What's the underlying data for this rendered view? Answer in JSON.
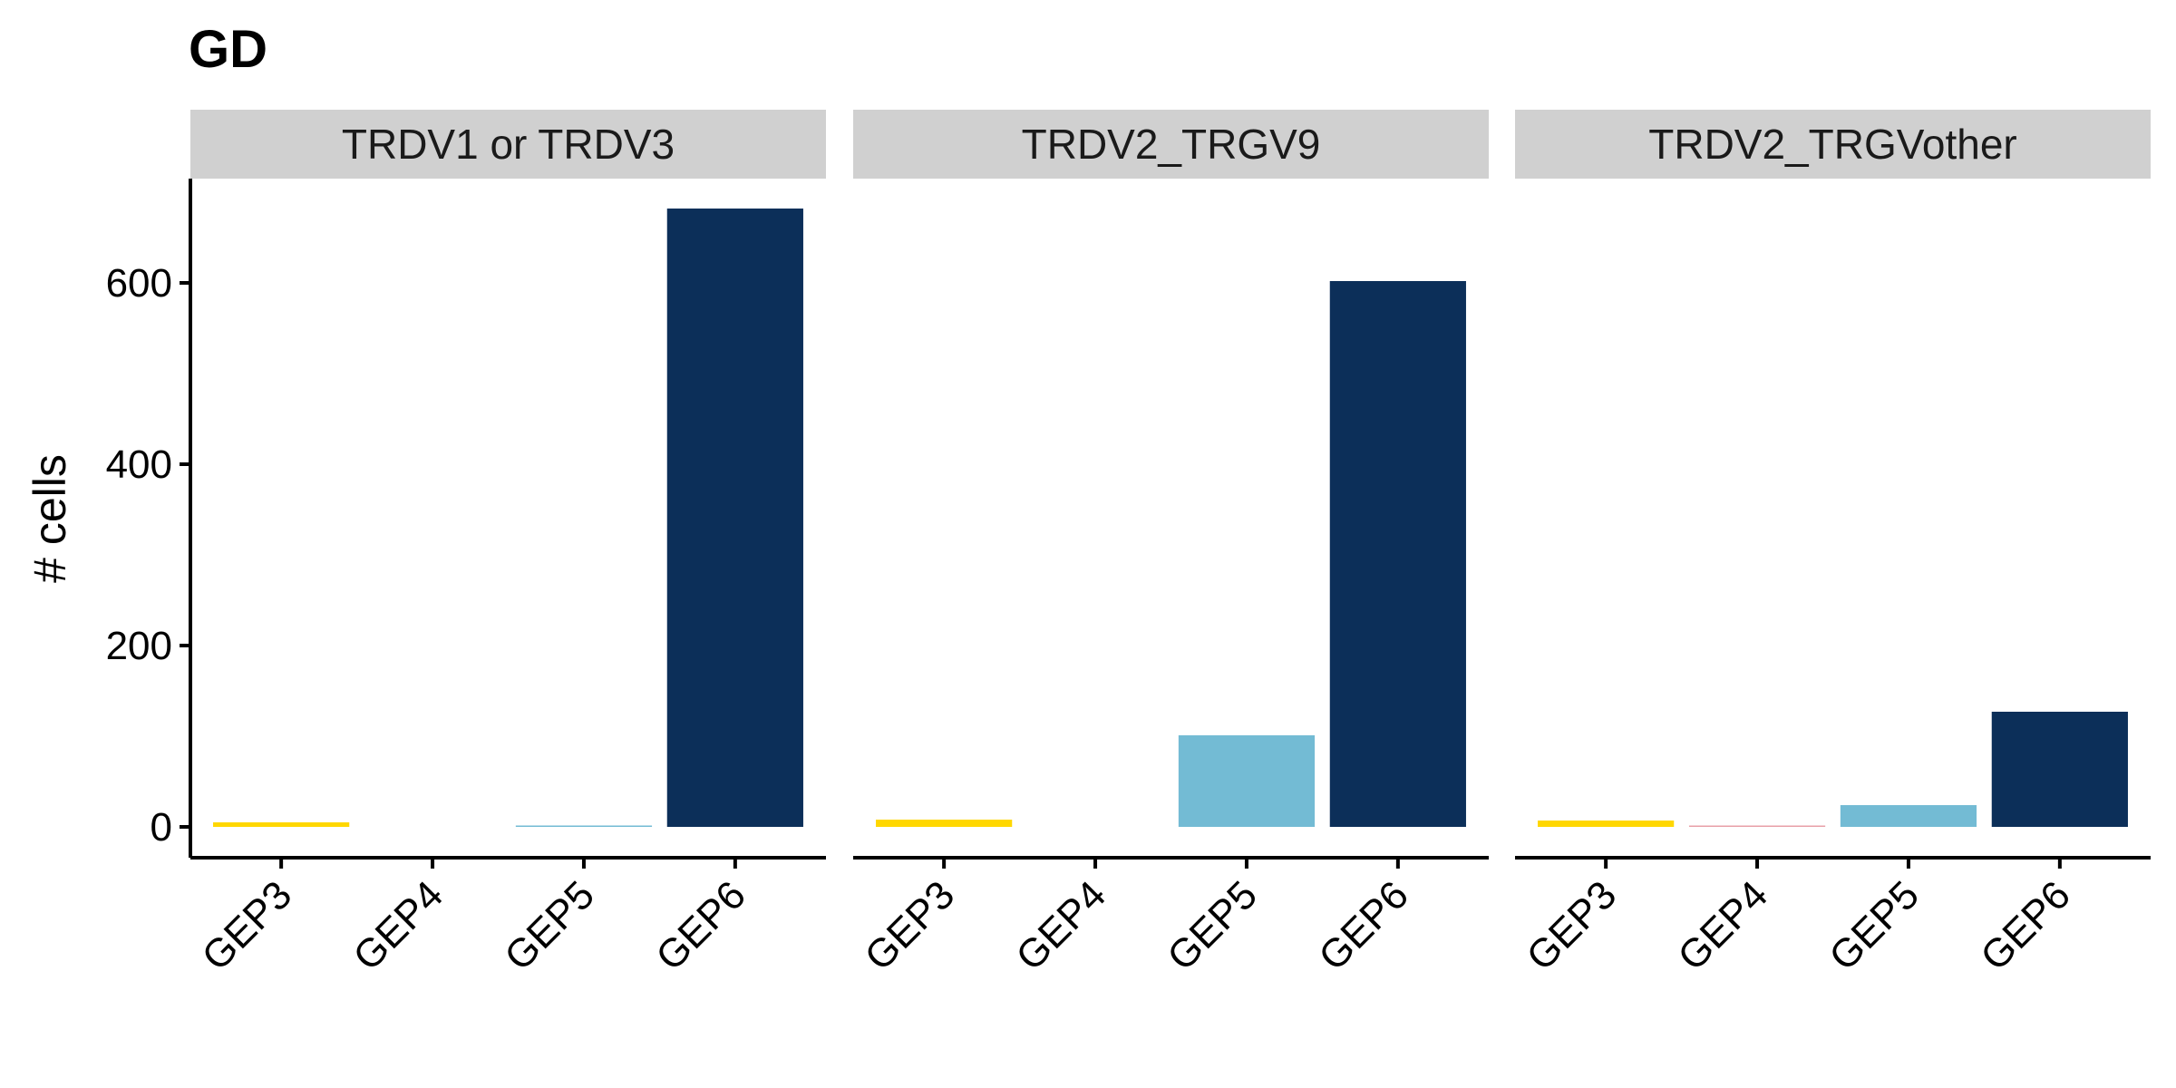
{
  "chart_data": {
    "type": "bar",
    "title": "GD",
    "xlabel": "",
    "ylabel": "# cells",
    "ylim": [
      -34,
      715
    ],
    "yticks": [
      0,
      200,
      400,
      600
    ],
    "categories": [
      "GEP3",
      "GEP4",
      "GEP5",
      "GEP6"
    ],
    "category_colors": {
      "GEP3": "#FFD700",
      "GEP4": "#E8A0A8",
      "GEP5": "#73BBD4",
      "GEP6": "#0C2F59"
    },
    "panels": [
      {
        "label": "TRDV1 or TRDV3",
        "values": [
          5,
          0,
          1,
          682
        ]
      },
      {
        "label": "TRDV2_TRGV9",
        "values": [
          8,
          0,
          101,
          602
        ]
      },
      {
        "label": "TRDV2_TRGVother",
        "values": [
          7,
          1,
          24,
          127
        ]
      }
    ],
    "grid": false,
    "legend": "none"
  }
}
